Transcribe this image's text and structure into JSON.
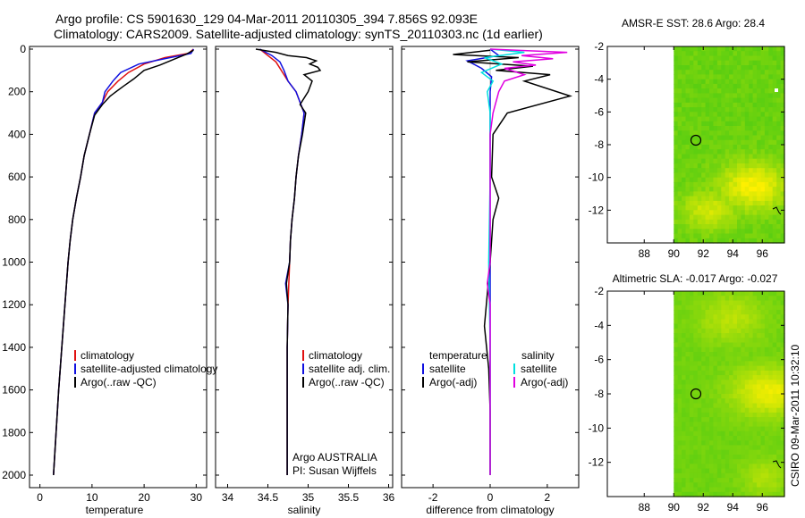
{
  "title_line1": "Argo profile: CS 5901630_129 04-Mar-2011 20110305_394 7.856S 92.093E",
  "title_line2": "Climatology: CARS2009. Satellite-adjusted climatology: synTS_20110303.nc (1d earlier)",
  "side_label": "CSIRO 09-Mar-2011 10:32:10",
  "colors": {
    "climatology": "#e01010",
    "satellite": "#1010e0",
    "argo": "#000000",
    "sal_satellite": "#00e0e0",
    "sal_argo": "#e000e0"
  },
  "legend_temp": {
    "climatology": "climatology",
    "satellite": "satellite-adjusted climatology",
    "argo": "Argo(..raw -QC)"
  },
  "legend_sal": {
    "climatology": "climatology",
    "satellite": "satellite adj. clim.",
    "argo": "Argo(..raw -QC)"
  },
  "legend_diff": {
    "temp_header": "temperature",
    "sal_header": "salinity",
    "temp_sat": "satellite",
    "temp_argo": "Argo(-adj)",
    "sal_sat": "satellite",
    "sal_argo": "Argo(-adj)"
  },
  "salinity_note": {
    "line1": "Argo AUSTRALIA",
    "line2": "PI: Susan Wijffels"
  },
  "map_titles": {
    "sst": "AMSR-E SST: 28.6 Argo: 28.4",
    "sla": "Altimetric SLA: -0.017 Argo: -0.027"
  },
  "chart_data": [
    {
      "type": "line",
      "xlabel": "temperature",
      "xlim": [
        -2,
        32
      ],
      "ylim": [
        2000,
        0
      ],
      "x_ticks": [
        "0",
        "10",
        "20",
        "30"
      ],
      "y_ticks": [
        "0",
        "200",
        "400",
        "600",
        "800",
        "1000",
        "1200",
        "1400",
        "1600",
        "1800",
        "2000"
      ],
      "series": [
        {
          "name": "climatology",
          "color": "#e01010",
          "points": [
            [
              29.5,
              0
            ],
            [
              28.5,
              20
            ],
            [
              24,
              40
            ],
            [
              20,
              70
            ],
            [
              17,
              110
            ],
            [
              15,
              150
            ],
            [
              13,
              200
            ],
            [
              12,
              250
            ],
            [
              10.5,
              300
            ],
            [
              9.5,
              400
            ],
            [
              8.5,
              500
            ],
            [
              7.8,
              600
            ],
            [
              7,
              700
            ],
            [
              6.3,
              800
            ],
            [
              5.8,
              900
            ],
            [
              5.4,
              1000
            ],
            [
              4.8,
              1200
            ],
            [
              4.2,
              1400
            ],
            [
              3.6,
              1600
            ],
            [
              3.1,
              1800
            ],
            [
              2.6,
              2000
            ]
          ]
        },
        {
          "name": "satellite-adjusted climatology",
          "color": "#1010e0",
          "points": [
            [
              29.5,
              0
            ],
            [
              29,
              20
            ],
            [
              25,
              40
            ],
            [
              19,
              70
            ],
            [
              15.5,
              110
            ],
            [
              14,
              150
            ],
            [
              12.5,
              200
            ],
            [
              12,
              250
            ],
            [
              10.5,
              300
            ],
            [
              9.5,
              400
            ],
            [
              8.5,
              500
            ],
            [
              7.8,
              600
            ],
            [
              7,
              700
            ],
            [
              6.3,
              800
            ],
            [
              5.8,
              900
            ],
            [
              5.4,
              1000
            ],
            [
              4.8,
              1200
            ],
            [
              4.2,
              1400
            ],
            [
              3.6,
              1600
            ],
            [
              3.1,
              1800
            ],
            [
              2.6,
              2000
            ]
          ]
        },
        {
          "name": "Argo(..raw -QC)",
          "color": "#000000",
          "points": [
            [
              29.5,
              5
            ],
            [
              28,
              25
            ],
            [
              26,
              45
            ],
            [
              23,
              75
            ],
            [
              20,
              100
            ],
            [
              18,
              140
            ],
            [
              16,
              175
            ],
            [
              13.5,
              220
            ],
            [
              12,
              260
            ],
            [
              10.5,
              310
            ],
            [
              9.5,
              400
            ],
            [
              8.5,
              500
            ],
            [
              7.8,
              600
            ],
            [
              7,
              700
            ],
            [
              6.3,
              800
            ],
            [
              5.8,
              900
            ],
            [
              5.4,
              1000
            ],
            [
              4.8,
              1200
            ],
            [
              4.2,
              1400
            ],
            [
              3.6,
              1600
            ],
            [
              3.1,
              1800
            ],
            [
              2.6,
              2000
            ]
          ]
        }
      ]
    },
    {
      "type": "line",
      "xlabel": "salinity",
      "xlim": [
        33.85,
        36.05
      ],
      "ylim": [
        2000,
        0
      ],
      "x_ticks": [
        "34",
        "34.5",
        "35",
        "35.5",
        "36"
      ],
      "series": [
        {
          "name": "climatology",
          "color": "#e01010",
          "points": [
            [
              34.4,
              0
            ],
            [
              34.5,
              30
            ],
            [
              34.6,
              60
            ],
            [
              34.7,
              120
            ],
            [
              34.75,
              150
            ],
            [
              34.85,
              200
            ],
            [
              34.9,
              250
            ],
            [
              34.95,
              300
            ],
            [
              34.92,
              400
            ],
            [
              34.88,
              500
            ],
            [
              34.85,
              600
            ],
            [
              34.83,
              700
            ],
            [
              34.8,
              800
            ],
            [
              34.78,
              900
            ],
            [
              34.77,
              1000
            ],
            [
              34.76,
              1100
            ],
            [
              34.75,
              1200
            ],
            [
              34.74,
              1400
            ],
            [
              34.74,
              1600
            ],
            [
              34.74,
              1800
            ],
            [
              34.74,
              2000
            ]
          ]
        },
        {
          "name": "satellite adj. clim.",
          "color": "#1010e0",
          "points": [
            [
              34.4,
              0
            ],
            [
              34.55,
              30
            ],
            [
              34.65,
              60
            ],
            [
              34.7,
              100
            ],
            [
              34.75,
              150
            ],
            [
              34.85,
              200
            ],
            [
              34.9,
              250
            ],
            [
              34.95,
              300
            ],
            [
              34.92,
              400
            ],
            [
              34.88,
              500
            ],
            [
              34.85,
              600
            ],
            [
              34.83,
              700
            ],
            [
              34.8,
              800
            ],
            [
              34.78,
              900
            ],
            [
              34.77,
              1000
            ],
            [
              34.72,
              1100
            ],
            [
              34.75,
              1200
            ],
            [
              34.74,
              1400
            ],
            [
              34.74,
              1600
            ],
            [
              34.74,
              1800
            ],
            [
              34.74,
              2000
            ]
          ]
        },
        {
          "name": "Argo(..raw -QC)",
          "color": "#000000",
          "points": [
            [
              34.35,
              0
            ],
            [
              34.6,
              15
            ],
            [
              34.75,
              30
            ],
            [
              34.98,
              40
            ],
            [
              35.1,
              55
            ],
            [
              35.02,
              70
            ],
            [
              35.12,
              85
            ],
            [
              35.15,
              100
            ],
            [
              34.95,
              120
            ],
            [
              35.05,
              150
            ],
            [
              35.0,
              200
            ],
            [
              34.9,
              260
            ],
            [
              34.97,
              300
            ],
            [
              34.93,
              400
            ],
            [
              34.88,
              500
            ],
            [
              34.85,
              600
            ],
            [
              34.83,
              700
            ],
            [
              34.8,
              800
            ],
            [
              34.78,
              900
            ],
            [
              34.77,
              1000
            ],
            [
              34.73,
              1100
            ],
            [
              34.75,
              1200
            ],
            [
              34.74,
              1400
            ],
            [
              34.74,
              1600
            ],
            [
              34.74,
              1800
            ],
            [
              34.74,
              2000
            ]
          ]
        }
      ]
    },
    {
      "type": "line",
      "xlabel": "difference from climatology",
      "xlim": [
        -3.1,
        3.1
      ],
      "ylim": [
        2000,
        0
      ],
      "x_ticks": [
        "-2",
        "0",
        "2"
      ],
      "series": [
        {
          "name": "temperature satellite",
          "color": "#1010e0",
          "points": [
            [
              0,
              0
            ],
            [
              0.3,
              30
            ],
            [
              -0.8,
              55
            ],
            [
              -0.3,
              90
            ],
            [
              0.05,
              130
            ],
            [
              0,
              200
            ],
            [
              0,
              400
            ],
            [
              0,
              800
            ],
            [
              0,
              1200
            ],
            [
              0,
              1600
            ],
            [
              0,
              2000
            ]
          ]
        },
        {
          "name": "temperature Argo(-adj)",
          "color": "#000000",
          "points": [
            [
              0,
              5
            ],
            [
              -1.3,
              25
            ],
            [
              1.0,
              40
            ],
            [
              -0.8,
              60
            ],
            [
              1.5,
              80
            ],
            [
              0.2,
              100
            ],
            [
              2.1,
              120
            ],
            [
              1.2,
              150
            ],
            [
              2.8,
              220
            ],
            [
              0.6,
              300
            ],
            [
              0.1,
              400
            ],
            [
              0.05,
              600
            ],
            [
              0.3,
              700
            ],
            [
              0.1,
              800
            ],
            [
              0,
              1000
            ],
            [
              -0.2,
              1300
            ],
            [
              -0.05,
              1500
            ],
            [
              0,
              1700
            ],
            [
              0,
              2000
            ]
          ]
        },
        {
          "name": "salinity satellite",
          "color": "#00e0e0",
          "points": [
            [
              0,
              0
            ],
            [
              1.2,
              15
            ],
            [
              -0.2,
              40
            ],
            [
              0.4,
              70
            ],
            [
              -0.3,
              110
            ],
            [
              0.1,
              150
            ],
            [
              -0.1,
              200
            ],
            [
              0,
              300
            ],
            [
              0,
              600
            ],
            [
              -0.05,
              1000
            ],
            [
              0,
              1400
            ],
            [
              0,
              1800
            ],
            [
              0,
              2000
            ]
          ]
        },
        {
          "name": "salinity Argo(-adj)",
          "color": "#e000e0",
          "points": [
            [
              0,
              0
            ],
            [
              2.7,
              15
            ],
            [
              1.1,
              30
            ],
            [
              2.2,
              45
            ],
            [
              0.8,
              60
            ],
            [
              1.6,
              75
            ],
            [
              0.5,
              90
            ],
            [
              1.2,
              120
            ],
            [
              0.5,
              150
            ],
            [
              0.3,
              200
            ],
            [
              0.1,
              300
            ],
            [
              0,
              400
            ],
            [
              0,
              700
            ],
            [
              0,
              1000
            ],
            [
              -0.1,
              1100
            ],
            [
              0,
              1200
            ],
            [
              0,
              1600
            ],
            [
              0,
              2000
            ]
          ]
        }
      ]
    },
    {
      "type": "heatmap",
      "title": "AMSR-E SST: 28.6 Argo: 28.4",
      "xlim": [
        85.5,
        97.5
      ],
      "ylim": [
        -14,
        -2
      ],
      "x_ticks": [
        "88",
        "90",
        "92",
        "94",
        "96"
      ],
      "y_ticks": [
        "-2",
        "-4",
        "-6",
        "-8",
        "-10",
        "-12"
      ],
      "argo_position": [
        92.093,
        -7.856
      ]
    },
    {
      "type": "heatmap",
      "title": "Altimetric SLA: -0.017 Argo: -0.027",
      "xlim": [
        85.5,
        97.5
      ],
      "ylim": [
        -14,
        -2
      ],
      "x_ticks": [
        "88",
        "90",
        "92",
        "94",
        "96"
      ],
      "y_ticks": [
        "-2",
        "-4",
        "-6",
        "-8",
        "-10",
        "-12"
      ],
      "argo_position": [
        92.093,
        -7.856
      ]
    }
  ]
}
